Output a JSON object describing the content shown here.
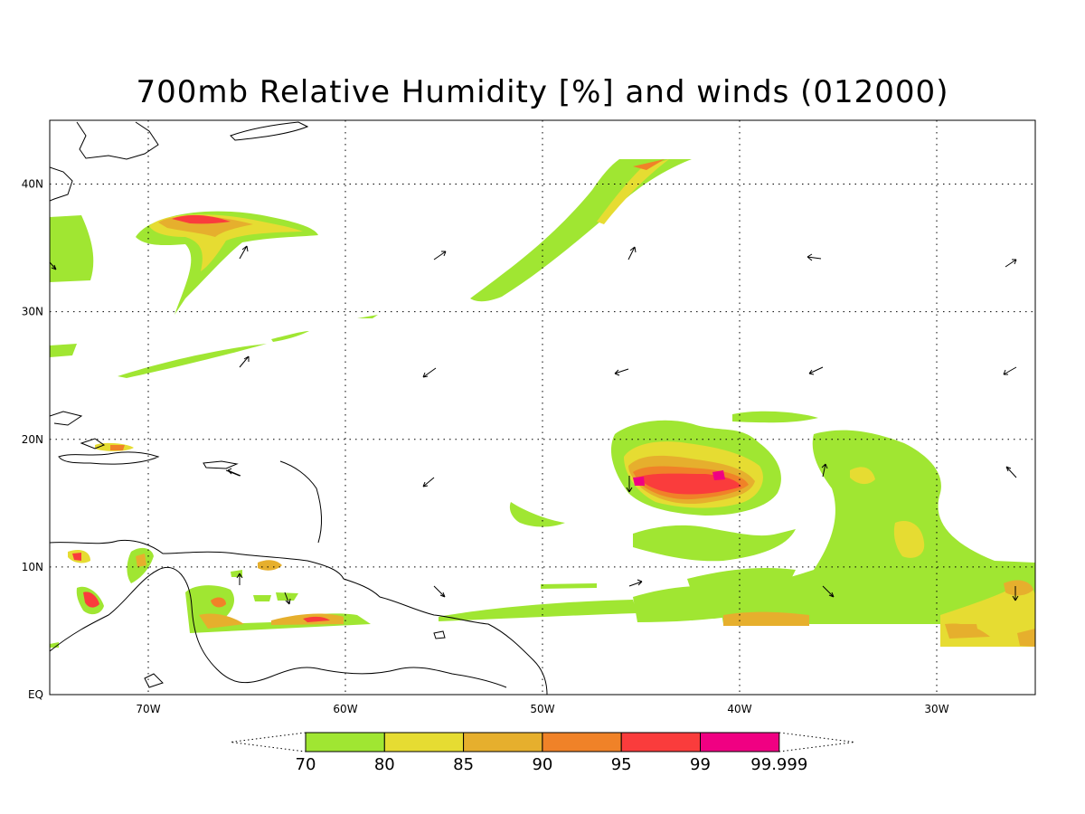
{
  "title": "700mb Relative Humidity [%] and winds (012000)",
  "map": {
    "lon_range": [
      -75,
      -25
    ],
    "lat_range": [
      0,
      45
    ],
    "lon_ticks": [
      {
        "value": -70,
        "label": "70W"
      },
      {
        "value": -60,
        "label": "60W"
      },
      {
        "value": -50,
        "label": "50W"
      },
      {
        "value": -40,
        "label": "40W"
      },
      {
        "value": -30,
        "label": "30W"
      }
    ],
    "lat_ticks": [
      {
        "value": 0,
        "label": "EQ"
      },
      {
        "value": 10,
        "label": "10N"
      },
      {
        "value": 20,
        "label": "20N"
      },
      {
        "value": 30,
        "label": "30N"
      },
      {
        "value": 40,
        "label": "40N"
      }
    ],
    "grid": "dotted"
  },
  "colorbar": {
    "labels": [
      "70",
      "80",
      "85",
      "90",
      "95",
      "99",
      "99.999"
    ],
    "colors": [
      "#a0e632",
      "#e6dc32",
      "#e6af2d",
      "#f08228",
      "#fa3c3c",
      "#f00082"
    ]
  }
}
